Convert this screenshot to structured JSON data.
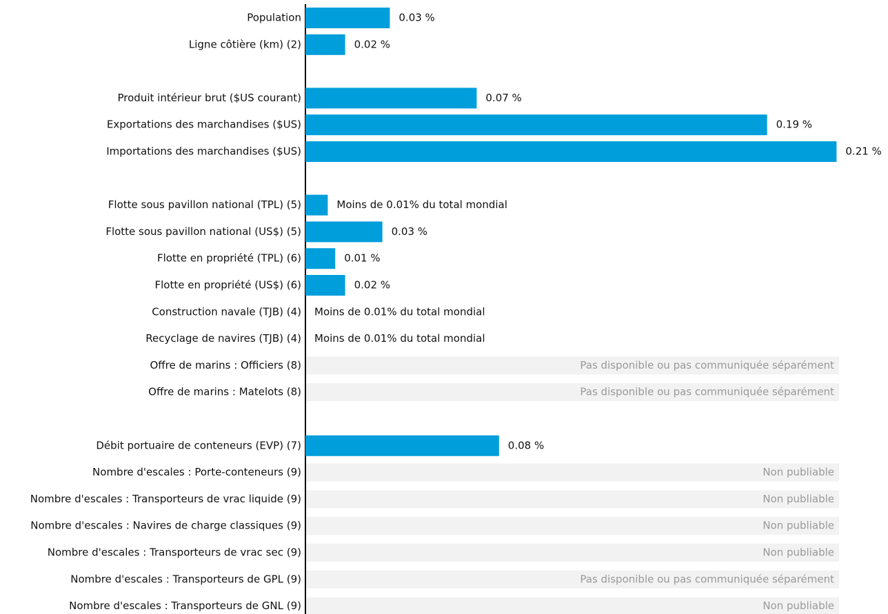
{
  "chart_data": {
    "type": "hbar",
    "color": "#009edb",
    "categories": [
      "Population",
      "Ligne côtière (km) (2)",
      null,
      "Produit intérieur brut ($US courant)",
      "Exportations des marchandises ($US)",
      "Importations des marchandises ($US)",
      null,
      "Flotte sous pavillon national (TPL) (5)",
      "Flotte sous pavillon national (US$) (5)",
      "Flotte en propriété (TPL) (6)",
      "Flotte en propriété (US$) (6)",
      "Construction navale (TJB) (4)",
      "Recyclage de navires (TJB) (4)",
      "Offre de marins : Officiers (8)",
      "Offre de marins : Matelots (8)",
      null,
      "Débit portuaire de conteneurs (EVP) (7)",
      "Nombre d'escales : Porte-conteneurs (9)",
      "Nombre d'escales : Transporteurs de vrac liquide (9)",
      "Nombre d'escales : Navires de charge classiques (9)",
      "Nombre d'escales : Transporteurs de vrac sec (9)",
      "Nombre d'escales : Transporteurs de GPL (9)",
      "Nombre d'escales : Transporteurs de GNL (9)"
    ],
    "values": [
      0.034,
      0.016,
      null,
      0.069,
      0.186,
      0.214,
      null,
      0.009,
      0.031,
      0.012,
      0.016,
      0,
      0,
      null,
      null,
      null,
      0.078,
      null,
      null,
      null,
      null,
      null,
      null
    ],
    "value_labels": [
      "0.03 %",
      "0.02 %",
      null,
      "0.07 %",
      "0.19 %",
      "0.21 %",
      null,
      "Moins de 0.01% du total mondial",
      "0.03 %",
      "0.01 %",
      "0.02 %",
      "Moins de 0.01% du total mondial",
      "Moins de 0.01% du total mondial",
      "Pas disponible ou pas communiquée séparément",
      "Pas disponible ou pas communiquée séparément",
      null,
      "0.08 %",
      "Non publiable",
      "Non publiable",
      "Non publiable",
      "Non publiable",
      "Pas disponible ou pas communiquée séparément",
      "Non publiable"
    ],
    "xlim": [
      0,
      0.215
    ]
  }
}
